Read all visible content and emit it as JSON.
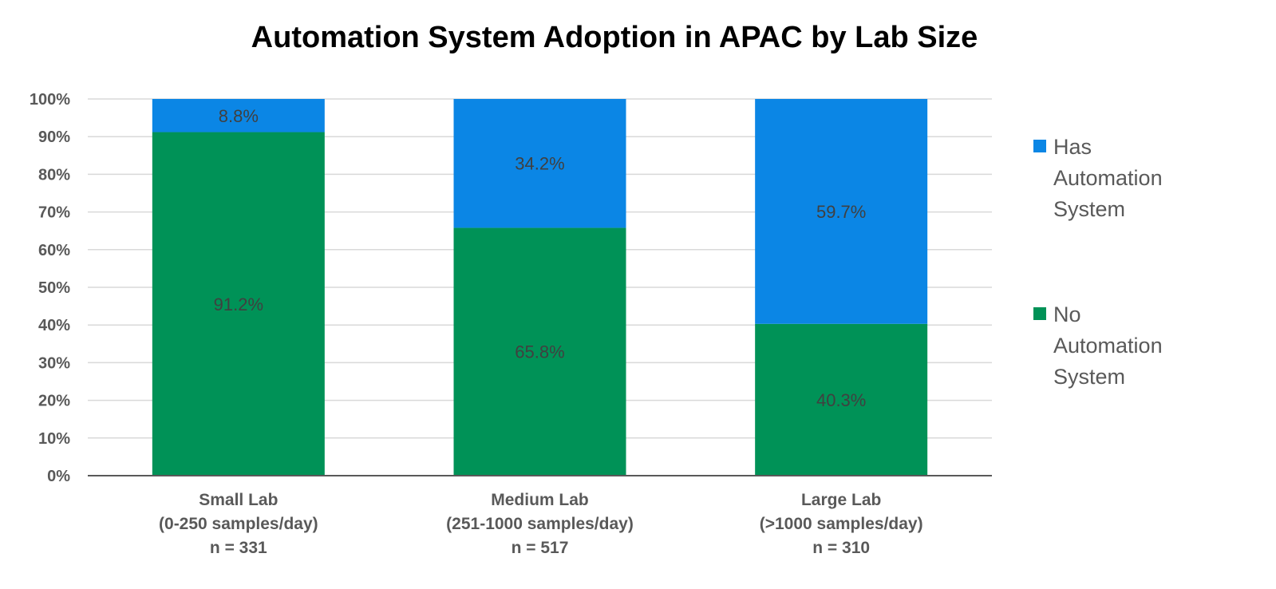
{
  "chart_data": {
    "type": "bar",
    "stacked": true,
    "title": "Automation System Adoption in APAC by Lab Size",
    "categories": [
      [
        "Small Lab",
        "(0-250 samples/day)",
        "n = 331"
      ],
      [
        "Medium Lab",
        "(251-1000 samples/day)",
        "n = 517"
      ],
      [
        "Large Lab",
        "(>1000 samples/day)",
        "n = 310"
      ]
    ],
    "series": [
      {
        "name": "No Automation System",
        "color": "#009257",
        "values": [
          91.2,
          65.8,
          40.3
        ],
        "labels": [
          "91.2%",
          "65.8%",
          "40.3%"
        ]
      },
      {
        "name": "Has Automation System",
        "color": "#0B86E5",
        "values": [
          8.8,
          34.2,
          59.7
        ],
        "labels": [
          "8.8%",
          "34.2%",
          "59.7%"
        ]
      }
    ],
    "legend_order": [
      [
        "Has",
        "Automation",
        "System"
      ],
      [
        "No",
        "Automation",
        "System"
      ]
    ],
    "legend_colors": [
      "#0B86E5",
      "#009257"
    ],
    "yticks": [
      "0%",
      "10%",
      "20%",
      "30%",
      "40%",
      "50%",
      "60%",
      "70%",
      "80%",
      "90%",
      "100%"
    ],
    "ylim": [
      0,
      100
    ],
    "grid": true,
    "legend_position": "right"
  }
}
